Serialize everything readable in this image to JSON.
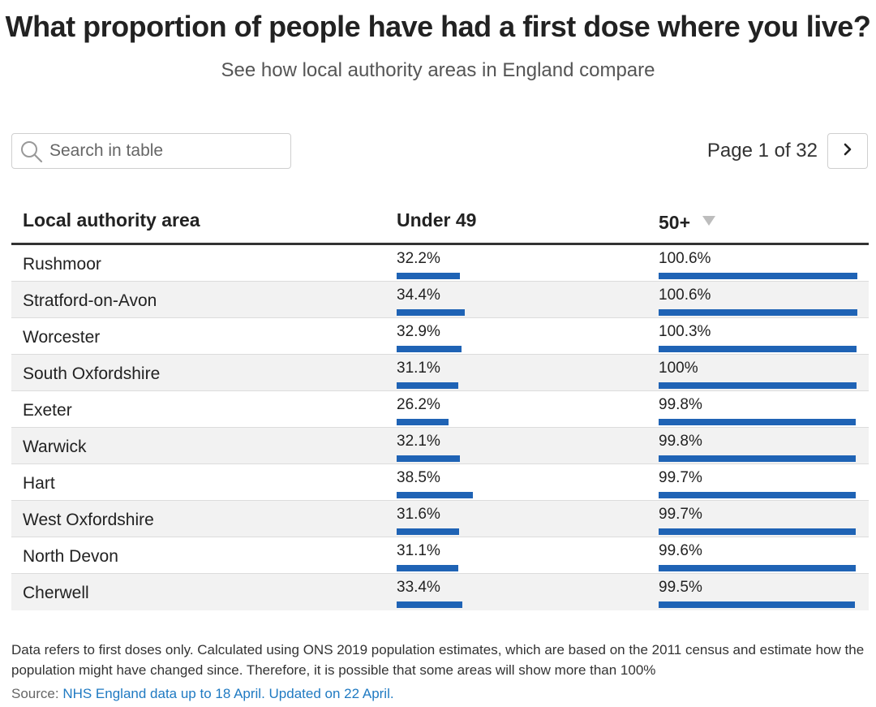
{
  "header": {
    "title": "What proportion of people have had a first dose where you live?",
    "subtitle": "See how local authority areas in England compare"
  },
  "search": {
    "placeholder": "Search in table"
  },
  "pager": {
    "label": "Page 1 of 32"
  },
  "icons": {
    "search": "search-icon",
    "next": "chevron-right-icon",
    "sort": "sort-descending-icon"
  },
  "colors": {
    "bar": "#1f63b5",
    "row_alt": "#f2f2f2",
    "link": "#1f7ac2"
  },
  "chart_data": {
    "type": "table",
    "columns": [
      "Local authority area",
      "Under 49",
      "50+"
    ],
    "sort": {
      "column": "50+",
      "direction": "descending"
    },
    "rows": [
      {
        "area": "Rushmoor",
        "under49": 32.2,
        "under49_label": "32.2%",
        "over50": 100.6,
        "over50_label": "100.6%"
      },
      {
        "area": "Stratford-on-Avon",
        "under49": 34.4,
        "under49_label": "34.4%",
        "over50": 100.6,
        "over50_label": "100.6%"
      },
      {
        "area": "Worcester",
        "under49": 32.9,
        "under49_label": "32.9%",
        "over50": 100.3,
        "over50_label": "100.3%"
      },
      {
        "area": "South Oxfordshire",
        "under49": 31.1,
        "under49_label": "31.1%",
        "over50": 100,
        "over50_label": "100%"
      },
      {
        "area": "Exeter",
        "under49": 26.2,
        "under49_label": "26.2%",
        "over50": 99.8,
        "over50_label": "99.8%"
      },
      {
        "area": "Warwick",
        "under49": 32.1,
        "under49_label": "32.1%",
        "over50": 99.8,
        "over50_label": "99.8%"
      },
      {
        "area": "Hart",
        "under49": 38.5,
        "under49_label": "38.5%",
        "over50": 99.7,
        "over50_label": "99.7%"
      },
      {
        "area": "West Oxfordshire",
        "under49": 31.6,
        "under49_label": "31.6%",
        "over50": 99.7,
        "over50_label": "99.7%"
      },
      {
        "area": "North Devon",
        "under49": 31.1,
        "under49_label": "31.1%",
        "over50": 99.6,
        "over50_label": "99.6%"
      },
      {
        "area": "Cherwell",
        "under49": 33.4,
        "under49_label": "33.4%",
        "over50": 99.5,
        "over50_label": "99.5%"
      }
    ]
  },
  "footer": {
    "note": "Data refers to first doses only. Calculated using ONS 2019 population estimates, which are based on the 2011 census and estimate how the population might have changed since. Therefore, it is possible that some areas will show more than 100%",
    "source_prefix": "Source: ",
    "source_link": "NHS England data up to 18 April. Updated on 22 April."
  }
}
